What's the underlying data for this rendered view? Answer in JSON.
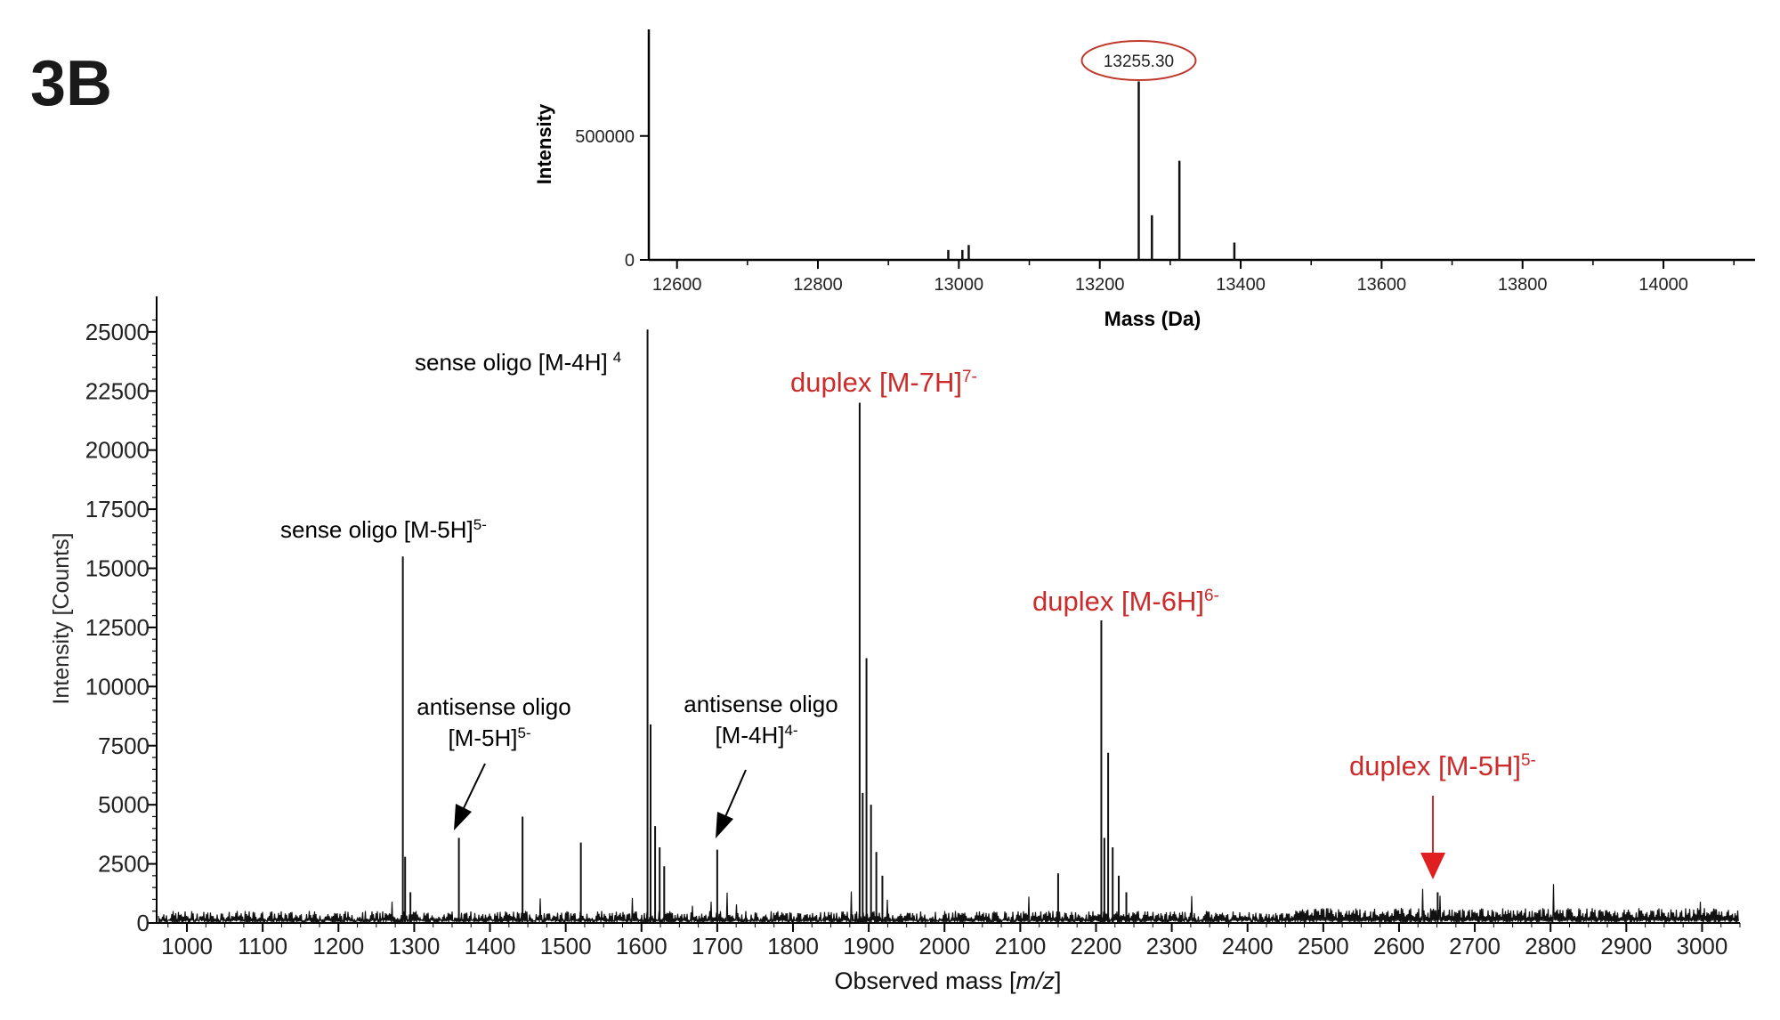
{
  "panel_label": "3B",
  "chart_data": [
    {
      "type": "bar",
      "role": "inset-deconvolved",
      "xlabel": "Mass (Da)",
      "ylabel": "Intensity",
      "xlim": [
        12560,
        14130
      ],
      "ylim": [
        0,
        930000
      ],
      "xticks": [
        "12600",
        "12800",
        "13000",
        "13200",
        "13400",
        "13600",
        "13800",
        "14000"
      ],
      "yticks": [
        "0",
        "500000"
      ],
      "peaks": [
        {
          "mass": 12985,
          "intensity": 40000
        },
        {
          "mass": 13005,
          "intensity": 40000
        },
        {
          "mass": 13014,
          "intensity": 60000
        },
        {
          "mass": 13255.3,
          "intensity": 720000
        },
        {
          "mass": 13274,
          "intensity": 180000
        },
        {
          "mass": 13313,
          "intensity": 400000
        },
        {
          "mass": 13391,
          "intensity": 70000
        }
      ],
      "annotation": {
        "text": "13255.30",
        "mass": 13255.3,
        "color": "#c0392b"
      }
    },
    {
      "type": "line",
      "role": "main-spectrum",
      "xlabel_prefix": "Observed mass [",
      "xlabel_italic": "m/z",
      "xlabel_suffix": "]",
      "ylabel": "Intensity [Counts]",
      "xlim": [
        960,
        3050
      ],
      "ylim": [
        0,
        26500
      ],
      "xticks": [
        "1000",
        "1100",
        "1200",
        "1300",
        "1400",
        "1500",
        "1600",
        "1700",
        "1800",
        "1900",
        "2000",
        "2100",
        "2200",
        "2300",
        "2400",
        "2500",
        "2600",
        "2700",
        "2800",
        "2900",
        "3000"
      ],
      "yticks": [
        "0",
        "2500",
        "5000",
        "7500",
        "10000",
        "12500",
        "15000",
        "17500",
        "20000",
        "22500",
        "25000"
      ],
      "baseline": 300,
      "peaks": [
        {
          "x": 1285,
          "y": 15500
        },
        {
          "x": 1288,
          "y": 2800
        },
        {
          "x": 1295,
          "y": 1300
        },
        {
          "x": 1359,
          "y": 3600
        },
        {
          "x": 1443,
          "y": 4500
        },
        {
          "x": 1520,
          "y": 3400
        },
        {
          "x": 1608,
          "y": 25100
        },
        {
          "x": 1612,
          "y": 8400
        },
        {
          "x": 1618,
          "y": 4100
        },
        {
          "x": 1624,
          "y": 3200
        },
        {
          "x": 1630,
          "y": 2400
        },
        {
          "x": 1700,
          "y": 3100
        },
        {
          "x": 1888,
          "y": 22000
        },
        {
          "x": 1892,
          "y": 5500
        },
        {
          "x": 1897,
          "y": 11200
        },
        {
          "x": 1903,
          "y": 5000
        },
        {
          "x": 1910,
          "y": 3000
        },
        {
          "x": 1918,
          "y": 2000
        },
        {
          "x": 2150,
          "y": 2100
        },
        {
          "x": 2207,
          "y": 12800
        },
        {
          "x": 2211,
          "y": 3600
        },
        {
          "x": 2216,
          "y": 7200
        },
        {
          "x": 2222,
          "y": 3200
        },
        {
          "x": 2230,
          "y": 2000
        },
        {
          "x": 2240,
          "y": 1300
        },
        {
          "x": 2651,
          "y": 1300
        }
      ],
      "annotations": [
        {
          "text": "sense oligo [M-5H]",
          "sup": "5-",
          "color": "#000000"
        },
        {
          "text": "sense oligo [M-4H]",
          "sup": "4",
          "color": "#000000"
        },
        {
          "text": "antisense oligo",
          "line2": "[M-5H]",
          "sup": "5-",
          "color": "#000000"
        },
        {
          "text": "antisense oligo",
          "line2": "[M-4H]",
          "sup": "4-",
          "color": "#000000"
        },
        {
          "text": "duplex [M-7H]",
          "sup": "7-",
          "color": "#cc2b2b"
        },
        {
          "text": "duplex [M-6H]",
          "sup": "6-",
          "color": "#cc2b2b"
        },
        {
          "text": "duplex [M-5H]",
          "sup": "5-",
          "color": "#cc2b2b"
        }
      ]
    }
  ]
}
